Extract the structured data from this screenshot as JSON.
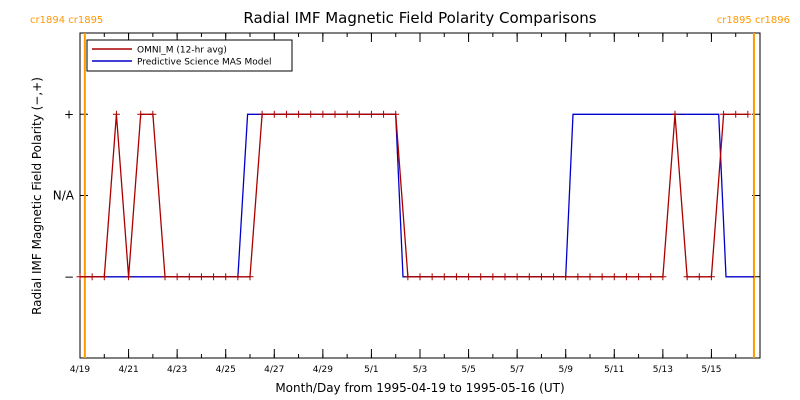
{
  "chart_data": {
    "type": "line",
    "title": "Radial IMF Magnetic Field Polarity Comparisons",
    "xlabel": "Month/Day from 1995-04-19 to 1995-05-16 (UT)",
    "ylabel": "Radial IMF Magnetic Field Polarity (−,+)",
    "x_unit": "day",
    "xlim": [
      0,
      28
    ],
    "x_ticks": [
      {
        "x": 0,
        "label": "4/19"
      },
      {
        "x": 2,
        "label": "4/21"
      },
      {
        "x": 4,
        "label": "4/23"
      },
      {
        "x": 6,
        "label": "4/25"
      },
      {
        "x": 8,
        "label": "4/27"
      },
      {
        "x": 10,
        "label": "4/29"
      },
      {
        "x": 12,
        "label": "5/1"
      },
      {
        "x": 14,
        "label": "5/3"
      },
      {
        "x": 16,
        "label": "5/5"
      },
      {
        "x": 18,
        "label": "5/7"
      },
      {
        "x": 20,
        "label": "5/9"
      },
      {
        "x": 22,
        "label": "5/11"
      },
      {
        "x": 24,
        "label": "5/13"
      },
      {
        "x": 26,
        "label": "5/15"
      }
    ],
    "ylim": [
      -2,
      2
    ],
    "y_ticks": [
      {
        "y": 1,
        "label": "+"
      },
      {
        "y": 0,
        "label": "N/A"
      },
      {
        "y": -1,
        "label": "−"
      }
    ],
    "carrington_markers": [
      {
        "x": 0.2,
        "left_label": "cr1894",
        "right_label": "cr1895",
        "color": "#ff9900"
      },
      {
        "x": 27.75,
        "left_label": "cr1895",
        "right_label": "cr1896",
        "color": "#ff9900"
      }
    ],
    "legend": {
      "placement": "top-left"
    },
    "series": [
      {
        "name": "OMNI_M (12-hr avg)",
        "color": "#aa0000",
        "markers": true,
        "x": [
          0.0,
          0.5,
          1.0,
          1.5,
          2.0,
          2.5,
          3.0,
          3.5,
          4.0,
          4.5,
          5.0,
          5.5,
          6.0,
          6.5,
          7.0,
          7.5,
          8.0,
          8.5,
          9.0,
          9.5,
          10.0,
          10.5,
          11.0,
          11.5,
          12.0,
          12.5,
          13.0,
          13.5,
          14.0,
          14.5,
          15.0,
          15.5,
          16.0,
          16.5,
          17.0,
          17.5,
          18.0,
          18.5,
          19.0,
          19.5,
          20.0,
          20.5,
          21.0,
          21.5,
          22.0,
          22.5,
          23.0,
          23.5,
          24.0,
          24.5,
          25.0,
          25.5,
          26.0,
          26.5,
          27.0,
          27.5
        ],
        "values": [
          -1,
          -1,
          -1,
          1,
          -1,
          1,
          1,
          -1,
          -1,
          -1,
          -1,
          -1,
          -1,
          -1,
          -1,
          1,
          1,
          1,
          1,
          1,
          1,
          1,
          1,
          1,
          1,
          1,
          1,
          -1,
          -1,
          -1,
          -1,
          -1,
          -1,
          -1,
          -1,
          -1,
          -1,
          -1,
          -1,
          -1,
          -1,
          -1,
          -1,
          -1,
          -1,
          -1,
          -1,
          -1,
          -1,
          1,
          -1,
          -1,
          -1,
          1,
          1,
          1
        ]
      },
      {
        "name": "Predictive Science MAS Model",
        "color": "#0000cc",
        "markers": false,
        "x": [
          0.2,
          6.5,
          6.9,
          13.0,
          13.3,
          20.0,
          20.3,
          26.3,
          26.6,
          27.75
        ],
        "values": [
          -1,
          -1,
          1,
          1,
          -1,
          -1,
          1,
          1,
          -1,
          -1
        ]
      }
    ]
  }
}
